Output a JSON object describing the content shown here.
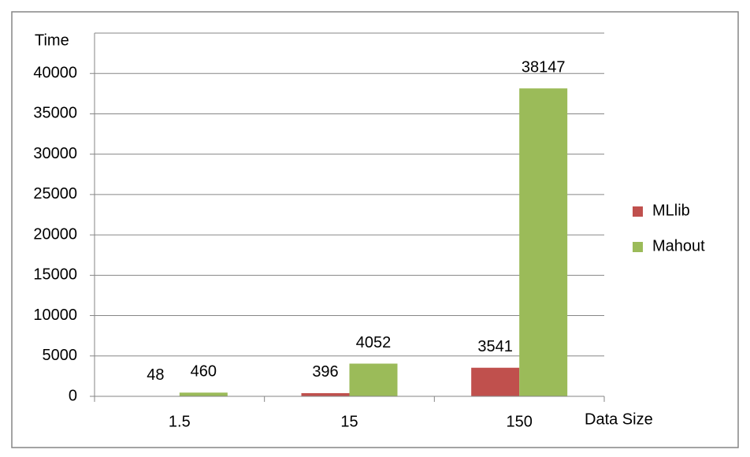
{
  "chart_data": {
    "type": "bar",
    "y_label": "Time",
    "x_label": "Data Size",
    "categories": [
      "1.5",
      "15",
      "150"
    ],
    "series": [
      {
        "name": "MLlib",
        "color": "#c0504d",
        "values": [
          48,
          396,
          3541
        ]
      },
      {
        "name": "Mahout",
        "color": "#9bbb59",
        "values": [
          460,
          4052,
          38147
        ]
      }
    ],
    "ylim": [
      0,
      45000
    ],
    "yticks": [
      0,
      5000,
      10000,
      15000,
      20000,
      25000,
      30000,
      35000,
      40000
    ],
    "grid": true,
    "legend": "right"
  }
}
